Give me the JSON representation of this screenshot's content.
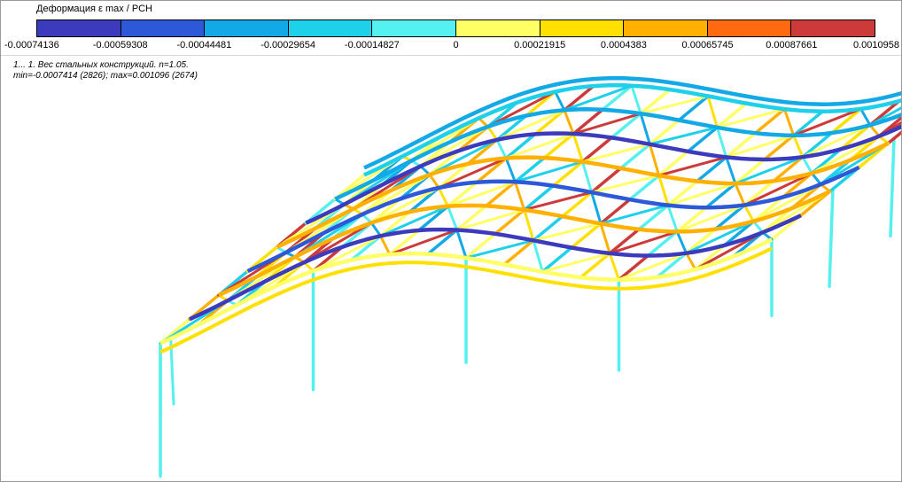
{
  "legend": {
    "title": "Деформация ε max / РСН",
    "colors": [
      "#3d3bbd",
      "#2d58d8",
      "#13a8e6",
      "#1ed0ea",
      "#55f0f0",
      "#ffff66",
      "#ffe000",
      "#ffb000",
      "#ff6a10",
      "#cc3a3a"
    ],
    "ticks": [
      "-0.00074136",
      "-0.00059308",
      "-0.00044481",
      "-0.00029654",
      "-0.00014827",
      "0",
      "0.00021915",
      "0.0004383",
      "0.00065745",
      "0.00087661",
      "0.0010958"
    ]
  },
  "case": {
    "line1": "1... 1. Вес стальных конструкций. n=1.05.",
    "line2": "min=-0.0007414 (2826); max=0.001096 (2674)"
  }
}
